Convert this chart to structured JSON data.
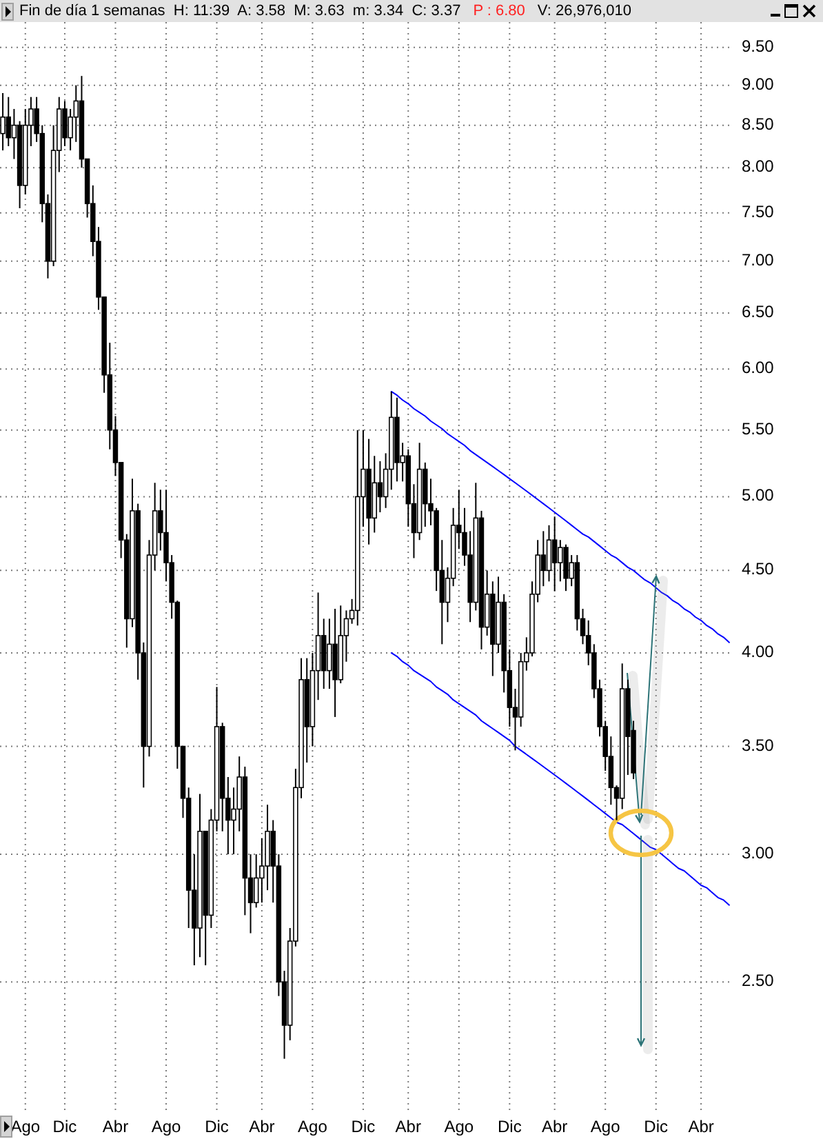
{
  "chart_data": {
    "type": "candlestick",
    "title": "Fin de día 1 semanas  H: 11:39  A: 3.58  M: 3.63  m: 3.34  C: 3.37",
    "subtitle": "P : 6.80",
    "annotations": [
      "V: 26,976,010"
    ],
    "categories": [
      null,
      null,
      null,
      null,
      "Ago",
      null,
      null,
      null,
      null,
      null,
      null,
      "Dic",
      null,
      null,
      null,
      null,
      null,
      null,
      null,
      null,
      "Abr",
      null,
      null,
      null,
      null,
      null,
      null,
      null,
      null,
      "Ago",
      null,
      null,
      null,
      null,
      null,
      null,
      null,
      null,
      "Dic",
      null,
      null,
      null,
      null,
      null,
      null,
      null,
      "Abr",
      null,
      null,
      null,
      null,
      null,
      null,
      null,
      null,
      "Ago",
      null,
      null,
      null,
      null,
      null,
      null,
      null,
      null,
      "Dic",
      null,
      null,
      null,
      null,
      null,
      null,
      null,
      "Abr",
      null,
      null,
      null,
      null,
      null,
      null,
      null,
      null,
      "Ago",
      null,
      null,
      null,
      null,
      null,
      null,
      null,
      null,
      "Dic",
      null,
      null,
      null,
      null,
      null,
      null,
      null,
      "Abr",
      null,
      null,
      null,
      null,
      null,
      null,
      null,
      null,
      "Ago",
      null,
      null,
      null,
      null,
      null,
      null,
      null,
      null,
      "Dic",
      null,
      null,
      null,
      null,
      null,
      null,
      null,
      "Abr",
      null,
      null,
      null,
      null,
      null
    ],
    "ohlc": [
      [
        8.4,
        8.9,
        8.2,
        8.6
      ],
      [
        8.6,
        8.85,
        8.25,
        8.35
      ],
      [
        8.35,
        8.7,
        8.1,
        8.5
      ],
      [
        8.5,
        8.55,
        7.55,
        7.8
      ],
      [
        7.8,
        8.7,
        7.7,
        8.5
      ],
      [
        8.5,
        8.85,
        8.25,
        8.7
      ],
      [
        8.7,
        8.85,
        8.3,
        8.4
      ],
      [
        8.4,
        8.5,
        7.4,
        7.6
      ],
      [
        7.6,
        7.7,
        6.83,
        7.0
      ],
      [
        7.0,
        8.5,
        6.95,
        8.2
      ],
      [
        8.2,
        8.85,
        7.95,
        8.7
      ],
      [
        8.7,
        8.8,
        8.25,
        8.35
      ],
      [
        8.35,
        8.7,
        8.2,
        8.6
      ],
      [
        8.6,
        9.0,
        8.3,
        8.8
      ],
      [
        8.8,
        9.12,
        8.0,
        8.1
      ],
      [
        8.1,
        8.1,
        7.45,
        7.6
      ],
      [
        7.6,
        7.8,
        7.05,
        7.2
      ],
      [
        7.2,
        7.35,
        6.53,
        6.65
      ],
      [
        6.65,
        6.65,
        5.8,
        5.95
      ],
      [
        5.95,
        6.23,
        5.35,
        5.5
      ],
      [
        5.5,
        5.61,
        5.15,
        5.25
      ],
      [
        5.25,
        5.25,
        4.58,
        4.7
      ],
      [
        4.7,
        4.74,
        4.03,
        4.2
      ],
      [
        4.2,
        5.13,
        4.15,
        4.9
      ],
      [
        4.9,
        4.95,
        3.85,
        4.0
      ],
      [
        4.0,
        4.06,
        3.3,
        3.5
      ],
      [
        3.5,
        4.7,
        3.45,
        4.6
      ],
      [
        4.6,
        5.1,
        4.5,
        4.9
      ],
      [
        4.9,
        5.05,
        4.63,
        4.75
      ],
      [
        4.75,
        5.05,
        4.43,
        4.55
      ],
      [
        4.55,
        4.6,
        4.2,
        4.3
      ],
      [
        4.3,
        4.31,
        3.39,
        3.5
      ],
      [
        3.5,
        3.5,
        3.16,
        3.25
      ],
      [
        3.25,
        3.3,
        2.7,
        2.85
      ],
      [
        2.85,
        3.0,
        2.56,
        2.7
      ],
      [
        2.7,
        3.27,
        2.59,
        3.1
      ],
      [
        3.1,
        3.1,
        2.56,
        2.75
      ],
      [
        2.75,
        3.2,
        2.7,
        3.15
      ],
      [
        3.15,
        3.81,
        3.1,
        3.6
      ],
      [
        3.6,
        3.62,
        3.1,
        3.25
      ],
      [
        3.25,
        3.35,
        3.0,
        3.15
      ],
      [
        3.15,
        3.3,
        3.0,
        3.2
      ],
      [
        3.2,
        3.45,
        3.1,
        3.35
      ],
      [
        3.35,
        3.4,
        2.75,
        2.9
      ],
      [
        2.9,
        3.0,
        2.68,
        2.8
      ],
      [
        2.8,
        3.0,
        2.78,
        2.9
      ],
      [
        2.9,
        3.07,
        2.8,
        2.95
      ],
      [
        2.95,
        3.22,
        2.85,
        3.1
      ],
      [
        3.1,
        3.15,
        2.8,
        2.95
      ],
      [
        2.95,
        3.0,
        2.45,
        2.5
      ],
      [
        2.5,
        2.54,
        2.24,
        2.35
      ],
      [
        2.35,
        2.7,
        2.3,
        2.65
      ],
      [
        2.65,
        3.39,
        2.63,
        3.3
      ],
      [
        3.3,
        3.97,
        3.25,
        3.85
      ],
      [
        3.85,
        3.97,
        3.42,
        3.6
      ],
      [
        3.6,
        4.0,
        3.5,
        3.9
      ],
      [
        3.9,
        4.36,
        3.74,
        4.1
      ],
      [
        4.1,
        4.2,
        3.8,
        3.9
      ],
      [
        3.9,
        4.2,
        3.8,
        4.05
      ],
      [
        4.05,
        4.26,
        3.65,
        3.85
      ],
      [
        3.85,
        4.28,
        3.83,
        4.1
      ],
      [
        4.1,
        4.25,
        3.95,
        4.2
      ],
      [
        4.2,
        4.32,
        4.17,
        4.25
      ],
      [
        4.25,
        5.5,
        4.16,
        5.0
      ],
      [
        5.0,
        5.5,
        4.79,
        5.2
      ],
      [
        5.2,
        5.43,
        4.67,
        4.85
      ],
      [
        4.85,
        5.3,
        4.75,
        5.1
      ],
      [
        5.1,
        5.26,
        4.89,
        5.0
      ],
      [
        5.0,
        5.32,
        4.92,
        5.2
      ],
      [
        5.2,
        5.81,
        5.05,
        5.6
      ],
      [
        5.6,
        5.76,
        5.11,
        5.25
      ],
      [
        5.25,
        5.4,
        5.11,
        5.3
      ],
      [
        5.3,
        5.35,
        4.79,
        4.95
      ],
      [
        4.95,
        5.09,
        4.58,
        4.75
      ],
      [
        4.75,
        5.4,
        4.7,
        5.2
      ],
      [
        5.2,
        5.25,
        4.79,
        4.95
      ],
      [
        4.95,
        5.13,
        4.8,
        4.9
      ],
      [
        4.9,
        4.92,
        4.37,
        4.5
      ],
      [
        4.5,
        4.7,
        4.05,
        4.3
      ],
      [
        4.3,
        4.52,
        4.18,
        4.45
      ],
      [
        4.45,
        4.92,
        4.4,
        4.8
      ],
      [
        4.8,
        5.05,
        4.64,
        4.75
      ],
      [
        4.75,
        4.92,
        4.53,
        4.6
      ],
      [
        4.6,
        4.76,
        4.18,
        4.3
      ],
      [
        4.3,
        5.1,
        4.25,
        4.85
      ],
      [
        4.85,
        4.9,
        4.02,
        4.15
      ],
      [
        4.15,
        4.5,
        4.1,
        4.35
      ],
      [
        4.35,
        4.43,
        3.87,
        4.05
      ],
      [
        4.05,
        4.46,
        4.0,
        4.3
      ],
      [
        4.3,
        4.35,
        3.78,
        3.9
      ],
      [
        3.9,
        4.02,
        3.6,
        3.7
      ],
      [
        3.7,
        3.8,
        3.48,
        3.65
      ],
      [
        3.65,
        4.0,
        3.6,
        3.95
      ],
      [
        3.95,
        4.09,
        3.9,
        4.0
      ],
      [
        4.0,
        4.43,
        3.98,
        4.35
      ],
      [
        4.35,
        4.7,
        4.3,
        4.6
      ],
      [
        4.6,
        4.76,
        4.4,
        4.5
      ],
      [
        4.5,
        4.8,
        4.43,
        4.7
      ],
      [
        4.7,
        4.86,
        4.37,
        4.55
      ],
      [
        4.55,
        4.7,
        4.43,
        4.65
      ],
      [
        4.65,
        4.67,
        4.37,
        4.45
      ],
      [
        4.45,
        4.6,
        4.4,
        4.55
      ],
      [
        4.55,
        4.6,
        4.13,
        4.2
      ],
      [
        4.2,
        4.26,
        4.05,
        4.1
      ],
      [
        4.1,
        4.19,
        3.93,
        4.0
      ],
      [
        4.0,
        4.05,
        3.75,
        3.8
      ],
      [
        3.8,
        3.85,
        3.55,
        3.6
      ],
      [
        3.6,
        3.63,
        3.38,
        3.45
      ],
      [
        3.45,
        3.55,
        3.22,
        3.3
      ],
      [
        3.3,
        3.31,
        3.15,
        3.25
      ],
      [
        3.25,
        3.94,
        3.2,
        3.8
      ],
      [
        3.8,
        3.85,
        3.36,
        3.55
      ],
      [
        3.58,
        3.63,
        3.34,
        3.37
      ],
      null,
      null,
      null,
      null,
      null,
      null,
      null,
      null,
      null,
      null,
      null,
      null,
      null,
      null,
      null,
      null,
      null
    ],
    "color": "#000000",
    "series": [
      {
        "type": "line",
        "color": "#0000ff",
        "values": [
          null,
          null,
          null,
          null,
          null,
          null,
          null,
          null,
          null,
          null,
          null,
          null,
          null,
          null,
          null,
          null,
          null,
          null,
          null,
          null,
          null,
          null,
          null,
          null,
          null,
          null,
          null,
          null,
          null,
          null,
          null,
          null,
          null,
          null,
          null,
          null,
          null,
          null,
          null,
          null,
          null,
          null,
          null,
          null,
          null,
          null,
          null,
          null,
          null,
          null,
          null,
          null,
          null,
          null,
          null,
          null,
          null,
          null,
          null,
          null,
          null,
          null,
          null,
          null,
          null,
          null,
          null,
          null,
          null,
          5.81,
          5.78,
          5.74,
          5.71,
          5.67,
          5.64,
          5.61,
          5.57,
          5.54,
          5.51,
          5.47,
          5.44,
          5.41,
          5.38,
          5.34,
          5.31,
          5.28,
          5.25,
          5.22,
          5.19,
          5.16,
          5.13,
          5.1,
          5.07,
          5.04,
          5.01,
          4.98,
          4.95,
          4.92,
          4.89,
          4.86,
          4.83,
          4.8,
          4.77,
          4.74,
          4.72,
          4.69,
          4.66,
          4.63,
          4.6,
          4.58,
          4.55,
          4.52,
          4.5,
          4.47,
          4.44,
          4.42,
          4.39,
          4.36,
          4.34,
          4.31,
          4.29,
          4.26,
          4.24,
          4.21,
          4.19,
          4.16,
          4.14,
          4.11,
          4.09,
          4.06
        ]
      },
      {
        "type": "line",
        "color": "#0000ff",
        "values": [
          null,
          null,
          null,
          null,
          null,
          null,
          null,
          null,
          null,
          null,
          null,
          null,
          null,
          null,
          null,
          null,
          null,
          null,
          null,
          null,
          null,
          null,
          null,
          null,
          null,
          null,
          null,
          null,
          null,
          null,
          null,
          null,
          null,
          null,
          null,
          null,
          null,
          null,
          null,
          null,
          null,
          null,
          null,
          null,
          null,
          null,
          null,
          null,
          null,
          null,
          null,
          null,
          null,
          null,
          null,
          null,
          null,
          null,
          null,
          null,
          null,
          null,
          null,
          null,
          null,
          null,
          null,
          null,
          null,
          4.0,
          3.98,
          3.95,
          3.93,
          3.9,
          3.88,
          3.86,
          3.84,
          3.81,
          3.79,
          3.77,
          3.74,
          3.72,
          3.7,
          3.68,
          3.66,
          3.63,
          3.61,
          3.59,
          3.57,
          3.55,
          3.53,
          3.5,
          3.48,
          3.46,
          3.44,
          3.42,
          3.4,
          3.38,
          3.36,
          3.34,
          3.32,
          3.3,
          3.28,
          3.26,
          3.24,
          3.22,
          3.2,
          3.18,
          3.16,
          3.14,
          3.13,
          3.11,
          3.09,
          3.07,
          3.05,
          3.03,
          3.02,
          3.0,
          2.98,
          2.96,
          2.94,
          2.93,
          2.91,
          2.89,
          2.87,
          2.86,
          2.84,
          2.82,
          2.81,
          2.79
        ]
      }
    ],
    "ylim": [
      2.09,
      9.85
    ],
    "yticks": [
      {
        "value": 2.5,
        "label": "2.50"
      },
      {
        "value": 3,
        "label": "3.00"
      },
      {
        "value": 3.5,
        "label": "3.50"
      },
      {
        "value": 4,
        "label": "4.00"
      },
      {
        "value": 4.5,
        "label": "4.50"
      },
      {
        "value": 5,
        "label": "5.00"
      },
      {
        "value": 5.5,
        "label": "5.50"
      },
      {
        "value": 6,
        "label": "6.00"
      },
      {
        "value": 6.5,
        "label": "6.50"
      },
      {
        "value": 7,
        "label": "7.00"
      },
      {
        "value": 7.5,
        "label": "7.50"
      },
      {
        "value": 8,
        "label": "8.00"
      },
      {
        "value": 8.5,
        "label": "8.50"
      },
      {
        "value": 9,
        "label": "9.00"
      },
      {
        "value": 9.5,
        "label": "9.50"
      }
    ],
    "log": "y",
    "grid": true
  }
}
